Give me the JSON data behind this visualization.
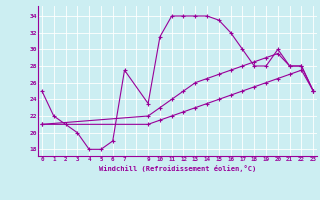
{
  "xlabel": "Windchill (Refroidissement éolien,°C)",
  "bg_color": "#cceef2",
  "line_color": "#990099",
  "grid_color": "#aadddd",
  "xtick_labels": [
    "0",
    "1",
    "2",
    "3",
    "4",
    "5",
    "6",
    "7",
    "",
    "9",
    "10",
    "11",
    "12",
    "13",
    "14",
    "15",
    "16",
    "17",
    "18",
    "19",
    "20",
    "21",
    "22",
    "23"
  ],
  "xtick_positions": [
    0,
    1,
    2,
    3,
    4,
    5,
    6,
    7,
    8,
    9,
    10,
    11,
    12,
    13,
    14,
    15,
    16,
    17,
    18,
    19,
    20,
    21,
    22,
    23
  ],
  "yticks": [
    18,
    20,
    22,
    24,
    26,
    28,
    30,
    32,
    34
  ],
  "xlim": [
    -0.3,
    23.3
  ],
  "ylim": [
    17.2,
    35.2
  ],
  "line1_x": [
    0,
    1,
    2,
    3,
    4,
    5,
    6,
    7,
    9,
    10,
    11,
    12,
    13,
    14,
    15,
    16,
    17,
    18,
    19,
    20,
    21,
    22,
    23
  ],
  "line1_y": [
    25,
    22,
    21,
    20,
    18,
    18,
    19,
    27.5,
    23.5,
    31.5,
    34,
    34,
    34,
    34,
    33.5,
    32,
    30,
    28,
    28,
    30,
    28,
    28,
    25
  ],
  "line2_x": [
    0,
    9,
    10,
    11,
    12,
    13,
    14,
    15,
    16,
    17,
    18,
    19,
    20,
    21,
    22,
    23
  ],
  "line2_y": [
    21,
    22,
    23,
    24,
    25,
    26,
    26.5,
    27,
    27.5,
    28,
    28.5,
    29,
    29.5,
    28,
    28,
    25
  ],
  "line3_x": [
    0,
    9,
    10,
    11,
    12,
    13,
    14,
    15,
    16,
    17,
    18,
    19,
    20,
    21,
    22,
    23
  ],
  "line3_y": [
    21,
    21,
    21.5,
    22,
    22.5,
    23,
    23.5,
    24,
    24.5,
    25,
    25.5,
    26,
    26.5,
    27,
    27.5,
    25
  ]
}
